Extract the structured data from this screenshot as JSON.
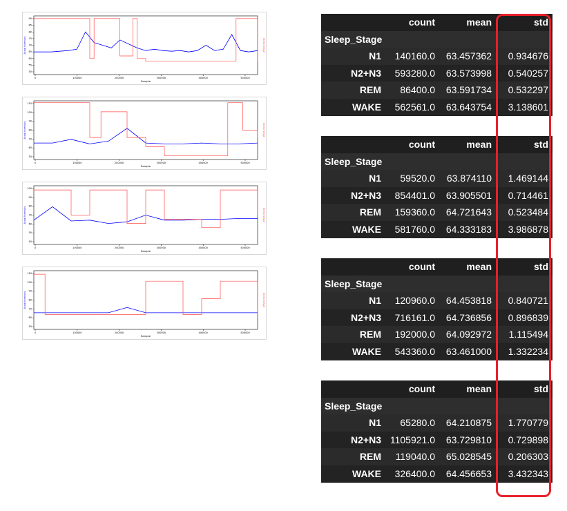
{
  "colors": {
    "signal": "#0000ff",
    "stage": "#ff4d4d",
    "highlight": "#e8202a",
    "table_bg": "#2b2b2b"
  },
  "chart_data": [
    {
      "type": "line",
      "xlabel": "Sample",
      "ylabel_left": "Acual Intensity",
      "ylabel_right": "Sleep Stage",
      "x_ticks": [
        "0",
        "100000",
        "200000",
        "300000",
        "400000",
        "500000"
      ],
      "y_ticks": [
        "50",
        "55",
        "60",
        "65",
        "70",
        "75",
        "80",
        "85",
        "90"
      ],
      "xlim": [
        0,
        520000
      ],
      "ylim": [
        48,
        92
      ],
      "series": [
        {
          "x": [
            0,
            20000,
            40000,
            60000,
            80000,
            100000,
            120000,
            140000,
            160000,
            180000,
            200000,
            220000,
            240000,
            260000,
            280000,
            300000,
            320000,
            340000,
            360000,
            380000,
            400000,
            420000,
            440000,
            460000,
            480000,
            500000,
            520000
          ],
          "y": [
            65,
            65,
            65,
            65.5,
            66,
            67,
            80,
            72,
            70,
            68,
            74,
            71,
            68,
            66,
            67,
            66,
            65.5,
            66,
            65,
            66,
            70,
            66,
            67,
            78,
            66,
            65,
            66
          ]
        },
        {
          "x": [
            0,
            120000,
            130000,
            140000,
            200000,
            230000,
            240000,
            260000,
            300000,
            320000,
            400000,
            460000,
            470000,
            520000
          ],
          "y": [
            90,
            90,
            60,
            90,
            62,
            90,
            60,
            58,
            58,
            58,
            58,
            58,
            90,
            58
          ]
        }
      ]
    },
    {
      "type": "line",
      "xlabel": "Sample",
      "ylabel_left": "Acual Intensity",
      "ylabel_right": "Sleep Stage",
      "x_ticks": [
        "0",
        "100000",
        "200000",
        "300000",
        "400000",
        "500000"
      ],
      "y_ticks": [
        "50",
        "60",
        "70",
        "80",
        "90",
        "100",
        "110"
      ],
      "xlim": [
        0,
        600000
      ],
      "ylim": [
        48,
        112
      ],
      "series": [
        {
          "x": [
            0,
            50000,
            100000,
            150000,
            200000,
            250000,
            300000,
            350000,
            400000,
            450000,
            500000,
            550000,
            600000
          ],
          "y": [
            66,
            66,
            70,
            65,
            68,
            82,
            66,
            65,
            65,
            66,
            65,
            65,
            66
          ]
        },
        {
          "x": [
            0,
            120000,
            150000,
            180000,
            250000,
            260000,
            300000,
            350000,
            500000,
            520000,
            560000,
            600000
          ],
          "y": [
            110,
            110,
            72,
            100,
            72,
            72,
            62,
            52,
            52,
            110,
            80,
            72
          ]
        }
      ]
    },
    {
      "type": "line",
      "xlabel": "Sample",
      "ylabel_left": "Acual Intensity",
      "ylabel_right": "Sleep Stage",
      "x_ticks": [
        "0",
        "100000",
        "200000",
        "300000",
        "400000",
        "500000"
      ],
      "y_ticks": [
        "40",
        "50",
        "60",
        "70",
        "80",
        "90",
        "100"
      ],
      "xlim": [
        0,
        600000
      ],
      "ylim": [
        35,
        105
      ],
      "series": [
        {
          "x": [
            0,
            50000,
            100000,
            150000,
            200000,
            250000,
            300000,
            350000,
            400000,
            450000,
            500000,
            550000,
            600000
          ],
          "y": [
            64,
            80,
            63,
            64,
            60,
            62,
            70,
            64,
            64,
            65,
            65,
            66,
            66
          ]
        },
        {
          "x": [
            0,
            50000,
            100000,
            150000,
            200000,
            250000,
            300000,
            350000,
            400000,
            450000,
            500000,
            550000,
            600000
          ],
          "y": [
            100,
            100,
            70,
            100,
            100,
            60,
            100,
            65,
            65,
            55,
            100,
            100,
            70
          ]
        }
      ]
    },
    {
      "type": "line",
      "xlabel": "Sample",
      "ylabel_left": "Acual Intensity",
      "ylabel_right": "Sleep Stage",
      "x_ticks": [
        "0",
        "100000",
        "200000",
        "300000",
        "400000",
        "500000"
      ],
      "y_ticks": [
        "50",
        "60",
        "70",
        "80",
        "90",
        "100",
        "110"
      ],
      "xlim": [
        0,
        600000
      ],
      "ylim": [
        45,
        112
      ],
      "series": [
        {
          "x": [
            0,
            50000,
            100000,
            150000,
            200000,
            250000,
            300000,
            350000,
            400000,
            450000,
            500000,
            550000,
            600000
          ],
          "y": [
            64,
            64,
            64,
            64,
            64,
            70,
            64,
            64,
            64,
            64,
            64,
            64,
            64
          ]
        },
        {
          "x": [
            0,
            30000,
            60000,
            100000,
            150000,
            200000,
            250000,
            300000,
            350000,
            400000,
            450000,
            500000,
            600000
          ],
          "y": [
            108,
            62,
            62,
            62,
            62,
            62,
            62,
            100,
            100,
            62,
            80,
            100,
            62
          ]
        }
      ]
    }
  ],
  "tables": [
    {
      "columns": [
        "count",
        "mean",
        "std"
      ],
      "index_label": "Sleep_Stage",
      "rows": [
        {
          "stage": "N1",
          "count": "140160.0",
          "mean": "63.457362",
          "std": "0.934676"
        },
        {
          "stage": "N2+N3",
          "count": "593280.0",
          "mean": "63.573998",
          "std": "0.540257"
        },
        {
          "stage": "REM",
          "count": "86400.0",
          "mean": "63.591734",
          "std": "0.532297"
        },
        {
          "stage": "WAKE",
          "count": "562561.0",
          "mean": "63.643754",
          "std": "3.138601"
        }
      ]
    },
    {
      "columns": [
        "count",
        "mean",
        "std"
      ],
      "index_label": "Sleep_Stage",
      "rows": [
        {
          "stage": "N1",
          "count": "59520.0",
          "mean": "63.874110",
          "std": "1.469144"
        },
        {
          "stage": "N2+N3",
          "count": "854401.0",
          "mean": "63.905501",
          "std": "0.714461"
        },
        {
          "stage": "REM",
          "count": "159360.0",
          "mean": "64.721643",
          "std": "0.523484"
        },
        {
          "stage": "WAKE",
          "count": "581760.0",
          "mean": "64.333183",
          "std": "3.986878"
        }
      ]
    },
    {
      "columns": [
        "count",
        "mean",
        "std"
      ],
      "index_label": "Sleep_Stage",
      "rows": [
        {
          "stage": "N1",
          "count": "120960.0",
          "mean": "64.453818",
          "std": "0.840721"
        },
        {
          "stage": "N2+N3",
          "count": "716161.0",
          "mean": "64.736856",
          "std": "0.896839"
        },
        {
          "stage": "REM",
          "count": "192000.0",
          "mean": "64.092972",
          "std": "1.115494"
        },
        {
          "stage": "WAKE",
          "count": "543360.0",
          "mean": "63.461000",
          "std": "1.332234"
        }
      ]
    },
    {
      "columns": [
        "count",
        "mean",
        "std"
      ],
      "index_label": "Sleep_Stage",
      "rows": [
        {
          "stage": "N1",
          "count": "65280.0",
          "mean": "64.210875",
          "std": "1.770779"
        },
        {
          "stage": "N2+N3",
          "count": "1105921.0",
          "mean": "63.729810",
          "std": "0.729898"
        },
        {
          "stage": "REM",
          "count": "119040.0",
          "mean": "65.028545",
          "std": "0.206303"
        },
        {
          "stage": "WAKE",
          "count": "326400.0",
          "mean": "64.456653",
          "std": "3.432343"
        }
      ]
    }
  ]
}
